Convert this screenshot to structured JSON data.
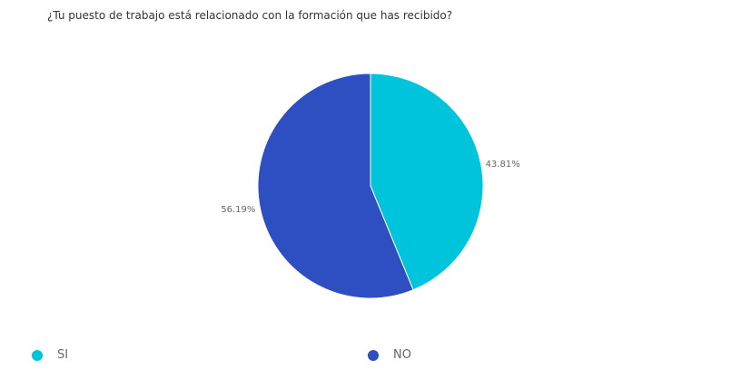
{
  "chart_data": {
    "type": "pie",
    "title": "¿Tu puesto de trabajo está relacionado con la formación que has recibido?",
    "categories": [
      "SI",
      "NO"
    ],
    "values": [
      43.81,
      56.19
    ],
    "labels": [
      "43.81%",
      "56.19%"
    ],
    "colors": [
      "#00C4DC",
      "#2D4FC2"
    ],
    "legend_position": "bottom"
  }
}
